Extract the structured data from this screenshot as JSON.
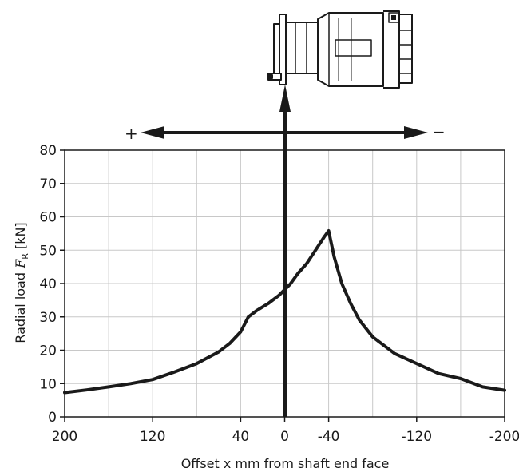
{
  "chart_data": {
    "type": "line",
    "title": "",
    "xlabel": "Offset x mm from shaft end face",
    "ylabel": {
      "prefix": "Radial load ",
      "symbol": "F",
      "subscript": "R",
      "unit": " [kN]"
    },
    "xlim": [
      200,
      -200
    ],
    "ylim": [
      0,
      80
    ],
    "x_ticks": [
      200,
      120,
      40,
      0,
      -40,
      -120,
      -200
    ],
    "x_tick_labels": [
      "200",
      "120",
      "40",
      "0",
      "-40",
      "-120",
      "-200"
    ],
    "y_ticks": [
      0,
      10,
      20,
      30,
      40,
      50,
      60,
      70,
      80
    ],
    "y_tick_labels": [
      "0",
      "10",
      "20",
      "30",
      "40",
      "50",
      "60",
      "70",
      "80"
    ],
    "grid": true,
    "series": [
      {
        "name": "",
        "color": "#1a1a1a",
        "points": [
          [
            200,
            7.3
          ],
          [
            180,
            8.1
          ],
          [
            160,
            9.0
          ],
          [
            140,
            10.0
          ],
          [
            120,
            11.2
          ],
          [
            100,
            13.5
          ],
          [
            80,
            16.0
          ],
          [
            60,
            19.5
          ],
          [
            50,
            22.0
          ],
          [
            40,
            25.5
          ],
          [
            33,
            30.0
          ],
          [
            25,
            32.0
          ],
          [
            15,
            34.0
          ],
          [
            5,
            36.5
          ],
          [
            -5,
            39.8
          ],
          [
            -12,
            43.0
          ],
          [
            -20,
            46.0
          ],
          [
            -28,
            50.0
          ],
          [
            -36,
            54.0
          ],
          [
            -40,
            55.8
          ],
          [
            -45,
            48.0
          ],
          [
            -52,
            40.0
          ],
          [
            -60,
            34.0
          ],
          [
            -68,
            29.0
          ],
          [
            -80,
            24.0
          ],
          [
            -100,
            19.0
          ],
          [
            -120,
            16.0
          ],
          [
            -140,
            13.0
          ],
          [
            -160,
            11.5
          ],
          [
            -180,
            9.0
          ],
          [
            -200,
            8.0
          ]
        ]
      }
    ],
    "annotations": {
      "plus_sign": "+",
      "minus_sign": "−"
    }
  }
}
